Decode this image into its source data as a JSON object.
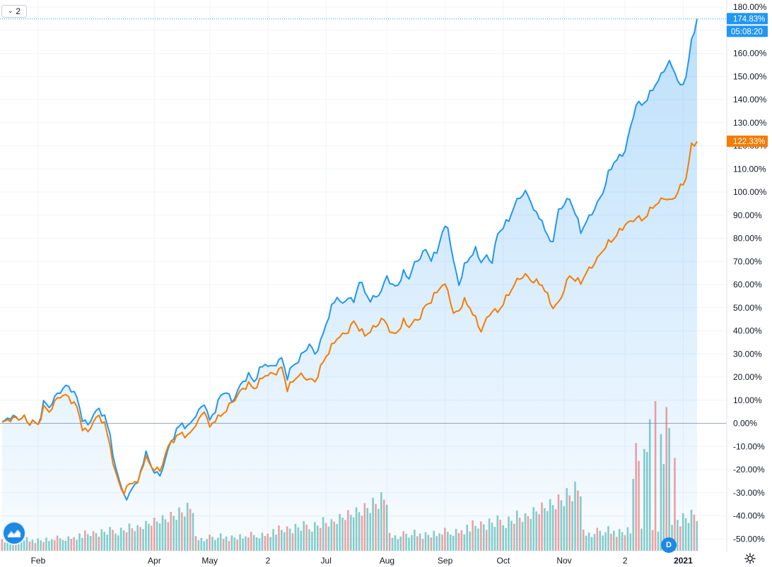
{
  "toolbar": {
    "series_count": "2"
  },
  "badges": {
    "interval_letter": "D"
  },
  "chart_data": {
    "type": "line",
    "y_axis_unit": "%",
    "yticks": [
      180,
      170,
      160,
      150,
      140,
      130,
      120,
      110,
      100,
      90,
      80,
      70,
      60,
      50,
      40,
      30,
      20,
      10,
      0,
      -10,
      -20,
      -30,
      -40,
      -50
    ],
    "ylim": [
      -53,
      181
    ],
    "ytick_labels": [
      "180.00%",
      "170.00%",
      "160.00%",
      "150.00%",
      "140.00%",
      "130.00%",
      "120.00%",
      "110.00%",
      "100.00%",
      "90.00%",
      "80.00%",
      "70.00%",
      "60.00%",
      "50.00%",
      "40.00%",
      "30.00%",
      "20.00%",
      "10.00%",
      "0.00%",
      "-10.00%",
      "-20.00%",
      "-30.00%",
      "-40.00%",
      "-50.00%"
    ],
    "xticks": [
      "Feb",
      "Apr",
      "May",
      "2",
      "Jul",
      "Aug",
      "Sep",
      "Oct",
      "Nov",
      "2",
      "2021"
    ],
    "x_domain": [
      0,
      251
    ],
    "xtick_pos": [
      13,
      55,
      75,
      96,
      117,
      139,
      160,
      181,
      203,
      225,
      246
    ],
    "zero_line": 0,
    "series": [
      {
        "color": "#2196f3",
        "area": true,
        "last_label": "174.83%",
        "time_label": "05:08:20",
        "anchors": [
          [
            0,
            0
          ],
          [
            3,
            3
          ],
          [
            6,
            2
          ],
          [
            8,
            3
          ],
          [
            9,
            0
          ],
          [
            11,
            1
          ],
          [
            13,
            -1
          ],
          [
            15,
            9
          ],
          [
            17,
            7
          ],
          [
            19,
            11
          ],
          [
            21,
            14
          ],
          [
            23,
            16
          ],
          [
            25,
            15
          ],
          [
            27,
            11
          ],
          [
            29,
            2
          ],
          [
            31,
            -1
          ],
          [
            33,
            4
          ],
          [
            35,
            6
          ],
          [
            37,
            3
          ],
          [
            39,
            -5
          ],
          [
            41,
            -20
          ],
          [
            43,
            -27
          ],
          [
            44,
            -30
          ],
          [
            45,
            -34
          ],
          [
            47,
            -27
          ],
          [
            49,
            -26
          ],
          [
            51,
            -16
          ],
          [
            52,
            -13
          ],
          [
            54,
            -19
          ],
          [
            56,
            -22
          ],
          [
            57,
            -23
          ],
          [
            59,
            -15
          ],
          [
            61,
            -8
          ],
          [
            63,
            -3
          ],
          [
            65,
            0
          ],
          [
            67,
            -2
          ],
          [
            69,
            2
          ],
          [
            71,
            5
          ],
          [
            73,
            9
          ],
          [
            75,
            1
          ],
          [
            77,
            6
          ],
          [
            79,
            12
          ],
          [
            81,
            14
          ],
          [
            83,
            9
          ],
          [
            85,
            14
          ],
          [
            87,
            18
          ],
          [
            89,
            21
          ],
          [
            91,
            18
          ],
          [
            93,
            23
          ],
          [
            95,
            26
          ],
          [
            97,
            24
          ],
          [
            99,
            26
          ],
          [
            101,
            28
          ],
          [
            103,
            20
          ],
          [
            105,
            25
          ],
          [
            107,
            27
          ],
          [
            109,
            31
          ],
          [
            111,
            34
          ],
          [
            113,
            30
          ],
          [
            115,
            35
          ],
          [
            117,
            43
          ],
          [
            119,
            50
          ],
          [
            121,
            55
          ],
          [
            123,
            51
          ],
          [
            125,
            55
          ],
          [
            127,
            52
          ],
          [
            129,
            62
          ],
          [
            131,
            57
          ],
          [
            133,
            53
          ],
          [
            135,
            55
          ],
          [
            137,
            57
          ],
          [
            139,
            64
          ],
          [
            141,
            59
          ],
          [
            143,
            60
          ],
          [
            145,
            65
          ],
          [
            147,
            63
          ],
          [
            149,
            69
          ],
          [
            151,
            72
          ],
          [
            153,
            75
          ],
          [
            155,
            71
          ],
          [
            157,
            74
          ],
          [
            159,
            83
          ],
          [
            161,
            85
          ],
          [
            163,
            70
          ],
          [
            165,
            60
          ],
          [
            167,
            68
          ],
          [
            169,
            72
          ],
          [
            171,
            75
          ],
          [
            173,
            70
          ],
          [
            175,
            72
          ],
          [
            177,
            70
          ],
          [
            179,
            82
          ],
          [
            181,
            85
          ],
          [
            183,
            88
          ],
          [
            185,
            94
          ],
          [
            187,
            98
          ],
          [
            189,
            100
          ],
          [
            191,
            96
          ],
          [
            193,
            90
          ],
          [
            195,
            88
          ],
          [
            197,
            80
          ],
          [
            199,
            79
          ],
          [
            201,
            92
          ],
          [
            203,
            95
          ],
          [
            205,
            97
          ],
          [
            207,
            91
          ],
          [
            209,
            83
          ],
          [
            211,
            87
          ],
          [
            213,
            91
          ],
          [
            215,
            95
          ],
          [
            217,
            100
          ],
          [
            219,
            108
          ],
          [
            221,
            113
          ],
          [
            223,
            115
          ],
          [
            225,
            118
          ],
          [
            227,
            128
          ],
          [
            229,
            138
          ],
          [
            231,
            138
          ],
          [
            233,
            140
          ],
          [
            235,
            145
          ],
          [
            237,
            148
          ],
          [
            239,
            153
          ],
          [
            241,
            156
          ],
          [
            243,
            152
          ],
          [
            245,
            145
          ],
          [
            247,
            150
          ],
          [
            249,
            165
          ],
          [
            251,
            175
          ]
        ]
      },
      {
        "color": "#f57c00",
        "area": false,
        "last_label": "122.33%",
        "anchors": [
          [
            0,
            0
          ],
          [
            3,
            2
          ],
          [
            6,
            2
          ],
          [
            8,
            3
          ],
          [
            9,
            0
          ],
          [
            11,
            1
          ],
          [
            13,
            -1
          ],
          [
            15,
            7
          ],
          [
            17,
            5
          ],
          [
            19,
            9
          ],
          [
            21,
            12
          ],
          [
            23,
            12
          ],
          [
            25,
            10
          ],
          [
            27,
            7
          ],
          [
            29,
            -2
          ],
          [
            31,
            -4
          ],
          [
            33,
            1
          ],
          [
            35,
            3
          ],
          [
            37,
            0
          ],
          [
            39,
            -10
          ],
          [
            41,
            -22
          ],
          [
            43,
            -28
          ],
          [
            44,
            -30
          ],
          [
            45,
            -28
          ],
          [
            47,
            -25
          ],
          [
            49,
            -26
          ],
          [
            51,
            -17
          ],
          [
            52,
            -15
          ],
          [
            54,
            -19
          ],
          [
            56,
            -20
          ],
          [
            57,
            -21
          ],
          [
            59,
            -13
          ],
          [
            61,
            -8
          ],
          [
            63,
            -6
          ],
          [
            65,
            -4
          ],
          [
            67,
            -6
          ],
          [
            69,
            -2
          ],
          [
            71,
            1
          ],
          [
            73,
            6
          ],
          [
            75,
            -2
          ],
          [
            77,
            2
          ],
          [
            79,
            3
          ],
          [
            81,
            6
          ],
          [
            83,
            9
          ],
          [
            85,
            12
          ],
          [
            87,
            15
          ],
          [
            89,
            17
          ],
          [
            91,
            15
          ],
          [
            93,
            18
          ],
          [
            95,
            21
          ],
          [
            97,
            21
          ],
          [
            99,
            22
          ],
          [
            101,
            24
          ],
          [
            103,
            15
          ],
          [
            105,
            18
          ],
          [
            107,
            21
          ],
          [
            109,
            20
          ],
          [
            111,
            19
          ],
          [
            113,
            18
          ],
          [
            115,
            24
          ],
          [
            117,
            29
          ],
          [
            119,
            33
          ],
          [
            121,
            37
          ],
          [
            123,
            38
          ],
          [
            125,
            40
          ],
          [
            127,
            44
          ],
          [
            129,
            41
          ],
          [
            131,
            38
          ],
          [
            133,
            40
          ],
          [
            135,
            42
          ],
          [
            137,
            45
          ],
          [
            139,
            43
          ],
          [
            141,
            38
          ],
          [
            143,
            40
          ],
          [
            145,
            44
          ],
          [
            147,
            42
          ],
          [
            149,
            44
          ],
          [
            151,
            46
          ],
          [
            153,
            51
          ],
          [
            155,
            53
          ],
          [
            157,
            57
          ],
          [
            159,
            60
          ],
          [
            161,
            58
          ],
          [
            163,
            47
          ],
          [
            165,
            49
          ],
          [
            167,
            53
          ],
          [
            169,
            50
          ],
          [
            171,
            45
          ],
          [
            173,
            40
          ],
          [
            175,
            45
          ],
          [
            177,
            49
          ],
          [
            179,
            48
          ],
          [
            181,
            52
          ],
          [
            183,
            56
          ],
          [
            185,
            60
          ],
          [
            187,
            63
          ],
          [
            189,
            64
          ],
          [
            191,
            62
          ],
          [
            193,
            61
          ],
          [
            195,
            60
          ],
          [
            197,
            55
          ],
          [
            199,
            50
          ],
          [
            201,
            52
          ],
          [
            203,
            58
          ],
          [
            205,
            64
          ],
          [
            207,
            62
          ],
          [
            209,
            61
          ],
          [
            211,
            65
          ],
          [
            213,
            68
          ],
          [
            215,
            71
          ],
          [
            217,
            75
          ],
          [
            219,
            78
          ],
          [
            221,
            80
          ],
          [
            223,
            83
          ],
          [
            225,
            86
          ],
          [
            227,
            87
          ],
          [
            229,
            89
          ],
          [
            231,
            88
          ],
          [
            233,
            90
          ],
          [
            235,
            94
          ],
          [
            237,
            95
          ],
          [
            239,
            98
          ],
          [
            241,
            96
          ],
          [
            243,
            98
          ],
          [
            245,
            102
          ],
          [
            247,
            106
          ],
          [
            249,
            120
          ],
          [
            251,
            122
          ]
        ]
      }
    ],
    "volume": {
      "up_color": "#26a69a",
      "down_color": "#ef5350",
      "scale_max": 100,
      "pattern": [
        14,
        10,
        12,
        9,
        11,
        15,
        13,
        10,
        12,
        16,
        11,
        13,
        9,
        14,
        12,
        10,
        15,
        11,
        13,
        12,
        17,
        14,
        12,
        11,
        16,
        13,
        15,
        12,
        19,
        14,
        22,
        18,
        16,
        21,
        19,
        15,
        23,
        20,
        17,
        25,
        22,
        18,
        16,
        24,
        21,
        19,
        28,
        23,
        20,
        26,
        24,
        22,
        30,
        27,
        25,
        33,
        29,
        27,
        35,
        31,
        28,
        38,
        34,
        30,
        42,
        37,
        33,
        46,
        40,
        36
      ],
      "spikes": [
        [
          228,
          48
        ],
        [
          229,
          72
        ],
        [
          230,
          60
        ],
        [
          232,
          68
        ],
        [
          233,
          66
        ],
        [
          234,
          88
        ],
        [
          236,
          100
        ],
        [
          238,
          78
        ],
        [
          239,
          58
        ],
        [
          240,
          96
        ],
        [
          241,
          82
        ],
        [
          243,
          62
        ]
      ]
    }
  }
}
